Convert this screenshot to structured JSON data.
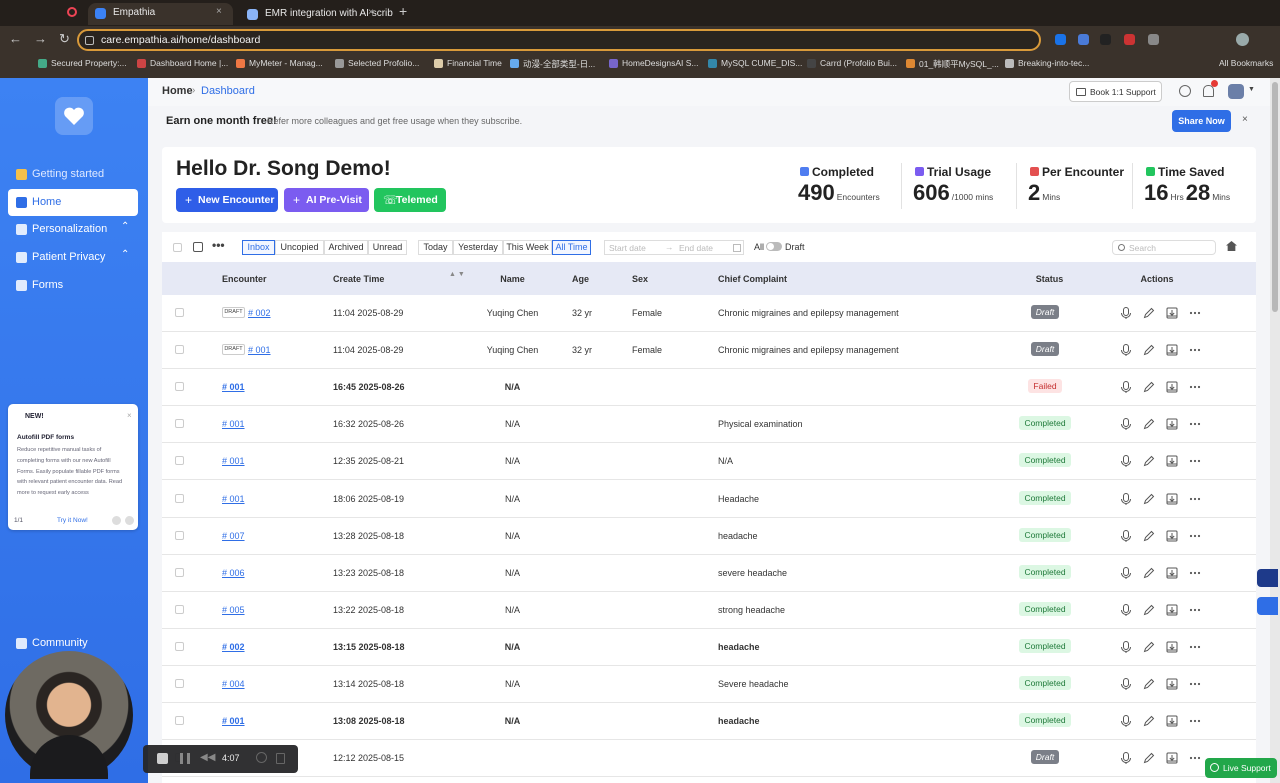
{
  "browser": {
    "tabs": [
      "Empathia",
      "EMR integration with AI scrib"
    ],
    "url": "care.empathia.ai/home/dashboard",
    "bookmarks": [
      "Secured Property:...",
      "Dashboard Home |...",
      "MyMeter - Manag...",
      "Selected Profolio...",
      "Financial Time",
      "动漫-全部类型-日...",
      "HomeDesignsAI S...",
      "MySQL CUME_DIS...",
      "Carrd (Profolio Bui...",
      "01_韩顺平MySQL_...",
      "Breaking-into-tec..."
    ],
    "all_bookmarks": "All Bookmarks"
  },
  "sidebar": {
    "nav": [
      "Getting started",
      "Home",
      "Personalization",
      "Patient Privacy",
      "Forms",
      "Community"
    ],
    "active": 1,
    "promo": {
      "badge": "NEW!",
      "title": "Autofill PDF forms",
      "body": "Reduce repetitive manual tasks of completing forms with our new Autofill Forms. Easily populate fillable PDF forms with relevant patient encounter data. Read more to request early access",
      "pager": "1/1",
      "cta": "Try it Now!"
    }
  },
  "header": {
    "breadcrumb": [
      "Home",
      "Dashboard"
    ],
    "support": "Book 1:1 Support"
  },
  "banner": {
    "title": "Earn one month free!",
    "text": "Refer more colleagues and get free usage when they subscribe.",
    "button": "Share Now"
  },
  "greeting": "Hello Dr. Song Demo!",
  "actions": [
    "New Encounter",
    "AI Pre-Visit",
    "Telemed"
  ],
  "stats": [
    {
      "label": "Completed",
      "parts": [
        {
          "text": "490",
          "big": true
        },
        {
          "text": "Encounters"
        }
      ]
    },
    {
      "label": "Trial Usage",
      "parts": [
        {
          "text": "606",
          "big": true
        },
        {
          "text": "/1000 mins"
        }
      ]
    },
    {
      "label": "Per Encounter",
      "parts": [
        {
          "text": "2",
          "big": true
        },
        {
          "text": "Mins"
        }
      ]
    },
    {
      "label": "Time Saved",
      "parts": [
        {
          "text": "16",
          "big": true
        },
        {
          "text": "Hrs"
        },
        {
          "text": "28",
          "big": true
        },
        {
          "text": "Mins"
        }
      ]
    }
  ],
  "filters": {
    "tabs": [
      "Inbox",
      "Uncopied",
      "Archived",
      "Unread"
    ],
    "active_tab": 0,
    "ranges": [
      "Today",
      "Yesterday",
      "This Week",
      "All Time"
    ],
    "active_range": 3,
    "start_placeholder": "Start date",
    "end_placeholder": "End date",
    "toggle_left": "All",
    "toggle_right": "Draft",
    "search": "Search"
  },
  "table": {
    "columns": [
      "Encounter",
      "Create Time",
      "Name",
      "Age",
      "Sex",
      "Chief Complaint",
      "Status",
      "Actions"
    ],
    "rows": [
      {
        "tag": "DRAFT",
        "encounter": "# 002",
        "time": "11:04 2025-08-29",
        "name": "Yuqing Chen",
        "age": "32 yr",
        "sex": "Female",
        "complaint": "Chronic migraines and epilepsy management",
        "status": "Draft"
      },
      {
        "tag": "DRAFT",
        "encounter": "# 001",
        "time": "11:04 2025-08-29",
        "name": "Yuqing Chen",
        "age": "32 yr",
        "sex": "Female",
        "complaint": "Chronic migraines and epilepsy management",
        "status": "Draft"
      },
      {
        "encounter": "# 001",
        "time": "16:45 2025-08-26",
        "name": "N/A",
        "status": "Failed",
        "bold": true
      },
      {
        "encounter": "# 001",
        "time": "16:32 2025-08-26",
        "name": "N/A",
        "complaint": "Physical examination",
        "status": "Completed"
      },
      {
        "encounter": "# 001",
        "time": "12:35 2025-08-21",
        "name": "N/A",
        "complaint": "N/A",
        "status": "Completed"
      },
      {
        "encounter": "# 001",
        "time": "18:06 2025-08-19",
        "name": "N/A",
        "complaint": "Headache",
        "status": "Completed"
      },
      {
        "encounter": "# 007",
        "time": "13:28 2025-08-18",
        "name": "N/A",
        "complaint": "headache",
        "status": "Completed"
      },
      {
        "encounter": "# 006",
        "time": "13:23 2025-08-18",
        "name": "N/A",
        "complaint": "severe headache",
        "status": "Completed"
      },
      {
        "encounter": "# 005",
        "time": "13:22 2025-08-18",
        "name": "N/A",
        "complaint": "strong headache",
        "status": "Completed"
      },
      {
        "encounter": "# 002",
        "time": "13:15 2025-08-18",
        "name": "N/A",
        "complaint": "headache",
        "status": "Completed",
        "bold": true
      },
      {
        "encounter": "# 004",
        "time": "13:14 2025-08-18",
        "name": "N/A",
        "complaint": "Severe headache",
        "status": "Completed"
      },
      {
        "encounter": "# 001",
        "time": "13:08 2025-08-18",
        "name": "N/A",
        "complaint": "headache",
        "status": "Completed",
        "bold": true
      },
      {
        "time": "12:12 2025-08-15",
        "status": "Draft"
      }
    ]
  },
  "recorder": {
    "time": "4:07"
  },
  "live_support": "Live Support"
}
